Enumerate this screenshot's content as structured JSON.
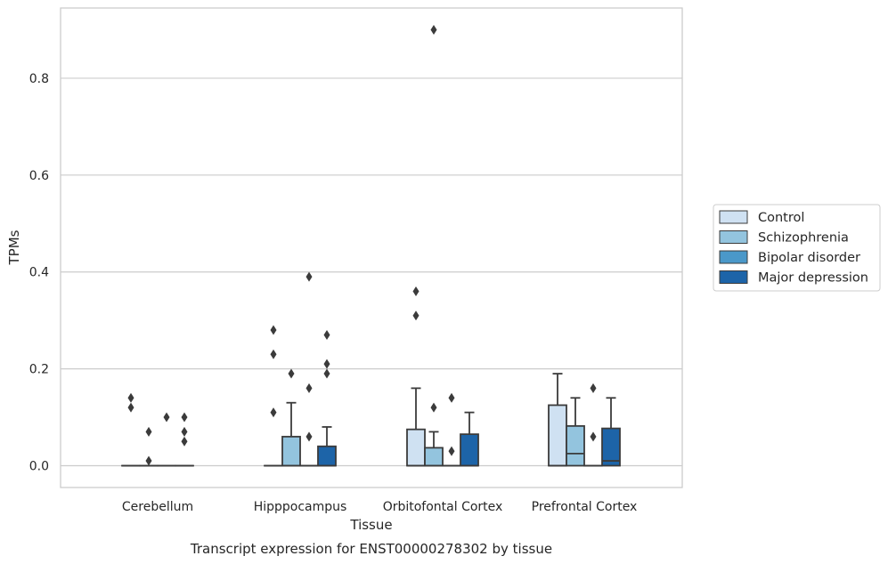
{
  "chart_data": {
    "type": "box",
    "title": "Transcript expression for ENST00000278302 by tissue",
    "xlabel": "Tissue",
    "ylabel": "TPMs",
    "ylim": [
      -0.045,
      0.945
    ],
    "yticks": [
      0.0,
      0.2,
      0.4,
      0.6,
      0.8
    ],
    "ytick_labels": [
      "0.0",
      "0.2",
      "0.4",
      "0.6",
      "0.8"
    ],
    "grid": "horizontal",
    "legend_position": "right",
    "categories": [
      "Cerebellum",
      "Hipppocampus",
      "Orbitofontal Cortex",
      "Prefrontal Cortex"
    ],
    "series": [
      {
        "name": "Control",
        "color": "#cfe1f2",
        "boxes": [
          {
            "q1": 0,
            "median": 0,
            "q3": 0,
            "whisker_low": 0,
            "whisker_high": 0,
            "outliers": [
              0.14,
              0.12
            ]
          },
          {
            "q1": 0,
            "median": 0,
            "q3": 0,
            "whisker_low": 0,
            "whisker_high": 0,
            "outliers": [
              0.28,
              0.23,
              0.11
            ]
          },
          {
            "q1": 0,
            "median": 0,
            "q3": 0.075,
            "whisker_low": 0,
            "whisker_high": 0.16,
            "outliers": [
              0.36,
              0.31
            ]
          },
          {
            "q1": 0,
            "median": 0,
            "q3": 0.125,
            "whisker_low": 0,
            "whisker_high": 0.19,
            "outliers": []
          }
        ]
      },
      {
        "name": "Schizophrenia",
        "color": "#93c4de",
        "boxes": [
          {
            "q1": 0,
            "median": 0,
            "q3": 0,
            "whisker_low": 0,
            "whisker_high": 0,
            "outliers": [
              0.07,
              0.01
            ]
          },
          {
            "q1": 0,
            "median": 0,
            "q3": 0.06,
            "whisker_low": 0,
            "whisker_high": 0.13,
            "outliers": [
              0.19
            ]
          },
          {
            "q1": 0,
            "median": 0,
            "q3": 0.037,
            "whisker_low": 0,
            "whisker_high": 0.07,
            "outliers": [
              0.9,
              0.12
            ]
          },
          {
            "q1": 0,
            "median": 0.025,
            "q3": 0.082,
            "whisker_low": 0,
            "whisker_high": 0.14,
            "outliers": []
          }
        ]
      },
      {
        "name": "Bipolar disorder",
        "color": "#4a98c9",
        "boxes": [
          {
            "q1": 0,
            "median": 0,
            "q3": 0,
            "whisker_low": 0,
            "whisker_high": 0,
            "outliers": [
              0.1
            ]
          },
          {
            "q1": 0,
            "median": 0,
            "q3": 0,
            "whisker_low": 0,
            "whisker_high": 0,
            "outliers": [
              0.39,
              0.16,
              0.06
            ]
          },
          {
            "q1": 0,
            "median": 0,
            "q3": 0,
            "whisker_low": 0,
            "whisker_high": 0,
            "outliers": [
              0.14,
              0.03
            ]
          },
          {
            "q1": 0,
            "median": 0,
            "q3": 0,
            "whisker_low": 0,
            "whisker_high": 0,
            "outliers": [
              0.16,
              0.06
            ]
          }
        ]
      },
      {
        "name": "Major depression",
        "color": "#1d64a8",
        "boxes": [
          {
            "q1": 0,
            "median": 0,
            "q3": 0,
            "whisker_low": 0,
            "whisker_high": 0,
            "outliers": [
              0.1,
              0.07,
              0.05
            ]
          },
          {
            "q1": 0,
            "median": 0,
            "q3": 0.04,
            "whisker_low": 0,
            "whisker_high": 0.08,
            "outliers": [
              0.27,
              0.21,
              0.19
            ]
          },
          {
            "q1": 0,
            "median": 0,
            "q3": 0.065,
            "whisker_low": 0,
            "whisker_high": 0.11,
            "outliers": []
          },
          {
            "q1": 0,
            "median": 0.01,
            "q3": 0.077,
            "whisker_low": 0,
            "whisker_high": 0.14,
            "outliers": []
          }
        ]
      }
    ]
  }
}
